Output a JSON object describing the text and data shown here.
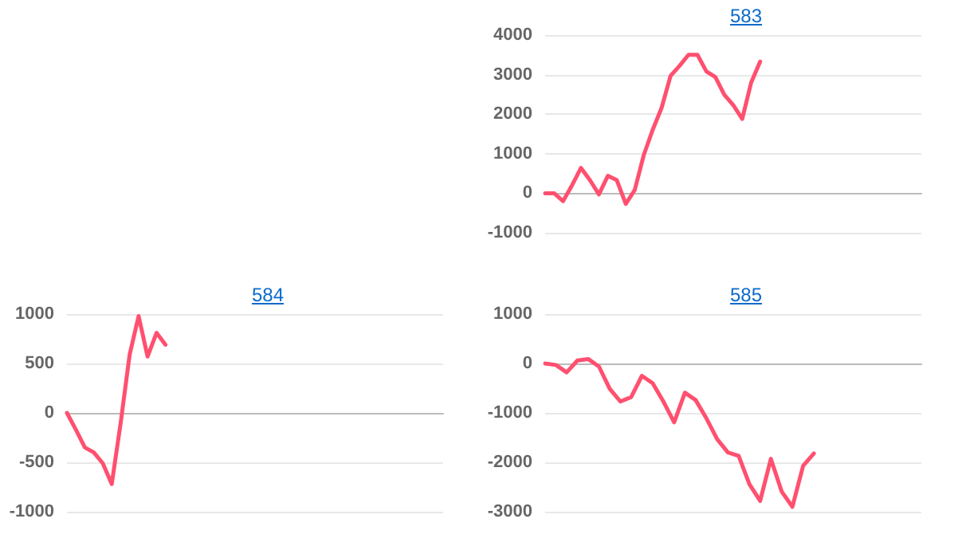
{
  "chart_data": [
    {
      "type": "line",
      "title": "583",
      "categories": [
        null,
        null,
        null,
        null,
        null,
        null,
        null,
        null,
        null,
        null,
        null,
        null,
        null,
        null,
        null,
        null,
        null,
        null,
        null,
        null,
        null,
        null,
        null,
        null,
        null,
        null,
        null,
        null,
        null,
        null,
        null,
        null,
        null,
        null,
        null,
        null,
        null,
        null,
        null,
        null,
        null,
        null,
        null
      ],
      "series": [
        {
          "color": "#ff5070",
          "values": [
            0,
            0,
            -200,
            200,
            640,
            330,
            -30,
            440,
            330,
            -270,
            80,
            960,
            1600,
            2160,
            2970,
            3220,
            3500,
            3500,
            3080,
            2940,
            2490,
            2230,
            1880,
            2800,
            3330,
            null,
            null,
            null,
            null,
            null,
            null,
            null,
            null,
            null,
            null,
            null,
            null,
            null,
            null,
            null,
            null,
            null,
            null
          ]
        }
      ],
      "ylim": [
        -1000,
        4000
      ],
      "yticks": [
        -1000,
        0,
        1000,
        2000,
        3000,
        4000
      ],
      "grid": "y",
      "tick_labels": "y"
    },
    {
      "type": "line",
      "title": "584",
      "categories": [
        null,
        null,
        null,
        null,
        null,
        null,
        null,
        null,
        null,
        null,
        null,
        null,
        null,
        null,
        null,
        null,
        null,
        null,
        null,
        null,
        null,
        null,
        null,
        null,
        null,
        null,
        null,
        null,
        null,
        null,
        null,
        null,
        null,
        null,
        null,
        null,
        null,
        null,
        null,
        null,
        null,
        null,
        null
      ],
      "series": [
        {
          "color": "#ff5070",
          "values": [
            0,
            -170,
            -350,
            -400,
            -510,
            -720,
            -100,
            590,
            980,
            570,
            810,
            690,
            null,
            null,
            null,
            null,
            null,
            null,
            null,
            null,
            null,
            null,
            null,
            null,
            null,
            null,
            null,
            null,
            null,
            null,
            null,
            null,
            null,
            null,
            null,
            null,
            null,
            null,
            null,
            null,
            null,
            null,
            null
          ]
        }
      ],
      "ylim": [
        -1000,
        1000
      ],
      "yticks": [
        -1000,
        -500,
        0,
        500,
        1000
      ],
      "grid": "y",
      "tick_labels": "y"
    },
    {
      "type": "line",
      "title": "585",
      "categories": [
        null,
        null,
        null,
        null,
        null,
        null,
        null,
        null,
        null,
        null,
        null,
        null,
        null,
        null,
        null,
        null,
        null,
        null,
        null,
        null,
        null,
        null,
        null,
        null,
        null,
        null,
        null,
        null,
        null,
        null,
        null,
        null,
        null,
        null,
        null,
        null
      ],
      "series": [
        {
          "color": "#ff5070",
          "values": [
            0,
            -30,
            -180,
            60,
            90,
            -60,
            -510,
            -770,
            -680,
            -250,
            -400,
            -770,
            -1190,
            -590,
            -740,
            -1110,
            -1530,
            -1800,
            -1870,
            -2440,
            -2780,
            -1930,
            -2590,
            -2900,
            -2070,
            -1820,
            null,
            null,
            null,
            null,
            null,
            null,
            null,
            null,
            null,
            null
          ]
        }
      ],
      "ylim": [
        -3000,
        1000
      ],
      "yticks": [
        -3000,
        -2000,
        -1000,
        0,
        1000
      ],
      "grid": "y",
      "tick_labels": "y"
    }
  ]
}
